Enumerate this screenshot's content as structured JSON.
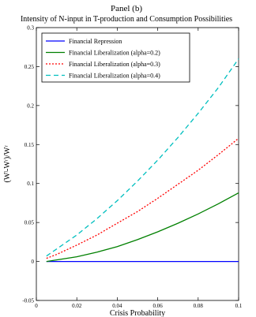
{
  "chart_data": {
    "type": "line",
    "title": "Panel (b)",
    "subtitle": "Intensity of N-input in T-production and Consumption Possibilities",
    "xlabel": "Crisis Probability",
    "ylabel": "(Wˡ-Wʳ)/Wʳ",
    "xlim": [
      0,
      0.1
    ],
    "ylim": [
      -0.05,
      0.3
    ],
    "xticks": [
      0,
      0.02,
      0.04,
      0.06,
      0.08,
      0.1
    ],
    "xtick_labels": [
      "0",
      "0.02",
      "0.04",
      "0.06",
      "0.08",
      "0.1"
    ],
    "yticks": [
      -0.05,
      0,
      0.05,
      0.1,
      0.15,
      0.2,
      0.25,
      0.3
    ],
    "ytick_labels": [
      "-0.05",
      "0",
      "0.05",
      "0.1",
      "0.15",
      "0.2",
      "0.25",
      "0.3"
    ],
    "grid": false,
    "legend_position": "top-left",
    "x": [
      0.005,
      0.01,
      0.02,
      0.03,
      0.04,
      0.05,
      0.06,
      0.07,
      0.08,
      0.09,
      0.1
    ],
    "series": [
      {
        "name": "Financial Repression",
        "color": "#0000ff",
        "dash": "solid",
        "values": [
          0,
          0,
          0,
          0,
          0,
          0,
          0,
          0,
          0,
          0,
          0
        ]
      },
      {
        "name": "Financial Liberalization (alpha=0.2)",
        "color": "#008000",
        "dash": "solid",
        "values": [
          0.0,
          0.002,
          0.006,
          0.012,
          0.019,
          0.028,
          0.038,
          0.049,
          0.061,
          0.074,
          0.088
        ]
      },
      {
        "name": "Financial Liberalization (alpha=0.3)",
        "color": "#ff0000",
        "dash": "dotted",
        "values": [
          0.004,
          0.009,
          0.021,
          0.034,
          0.049,
          0.064,
          0.081,
          0.099,
          0.117,
          0.137,
          0.158
        ]
      },
      {
        "name": "Financial Liberalization (alpha=0.4)",
        "color": "#00bfbf",
        "dash": "dashed",
        "values": [
          0.007,
          0.016,
          0.034,
          0.055,
          0.078,
          0.103,
          0.13,
          0.159,
          0.19,
          0.223,
          0.26
        ]
      }
    ]
  }
}
